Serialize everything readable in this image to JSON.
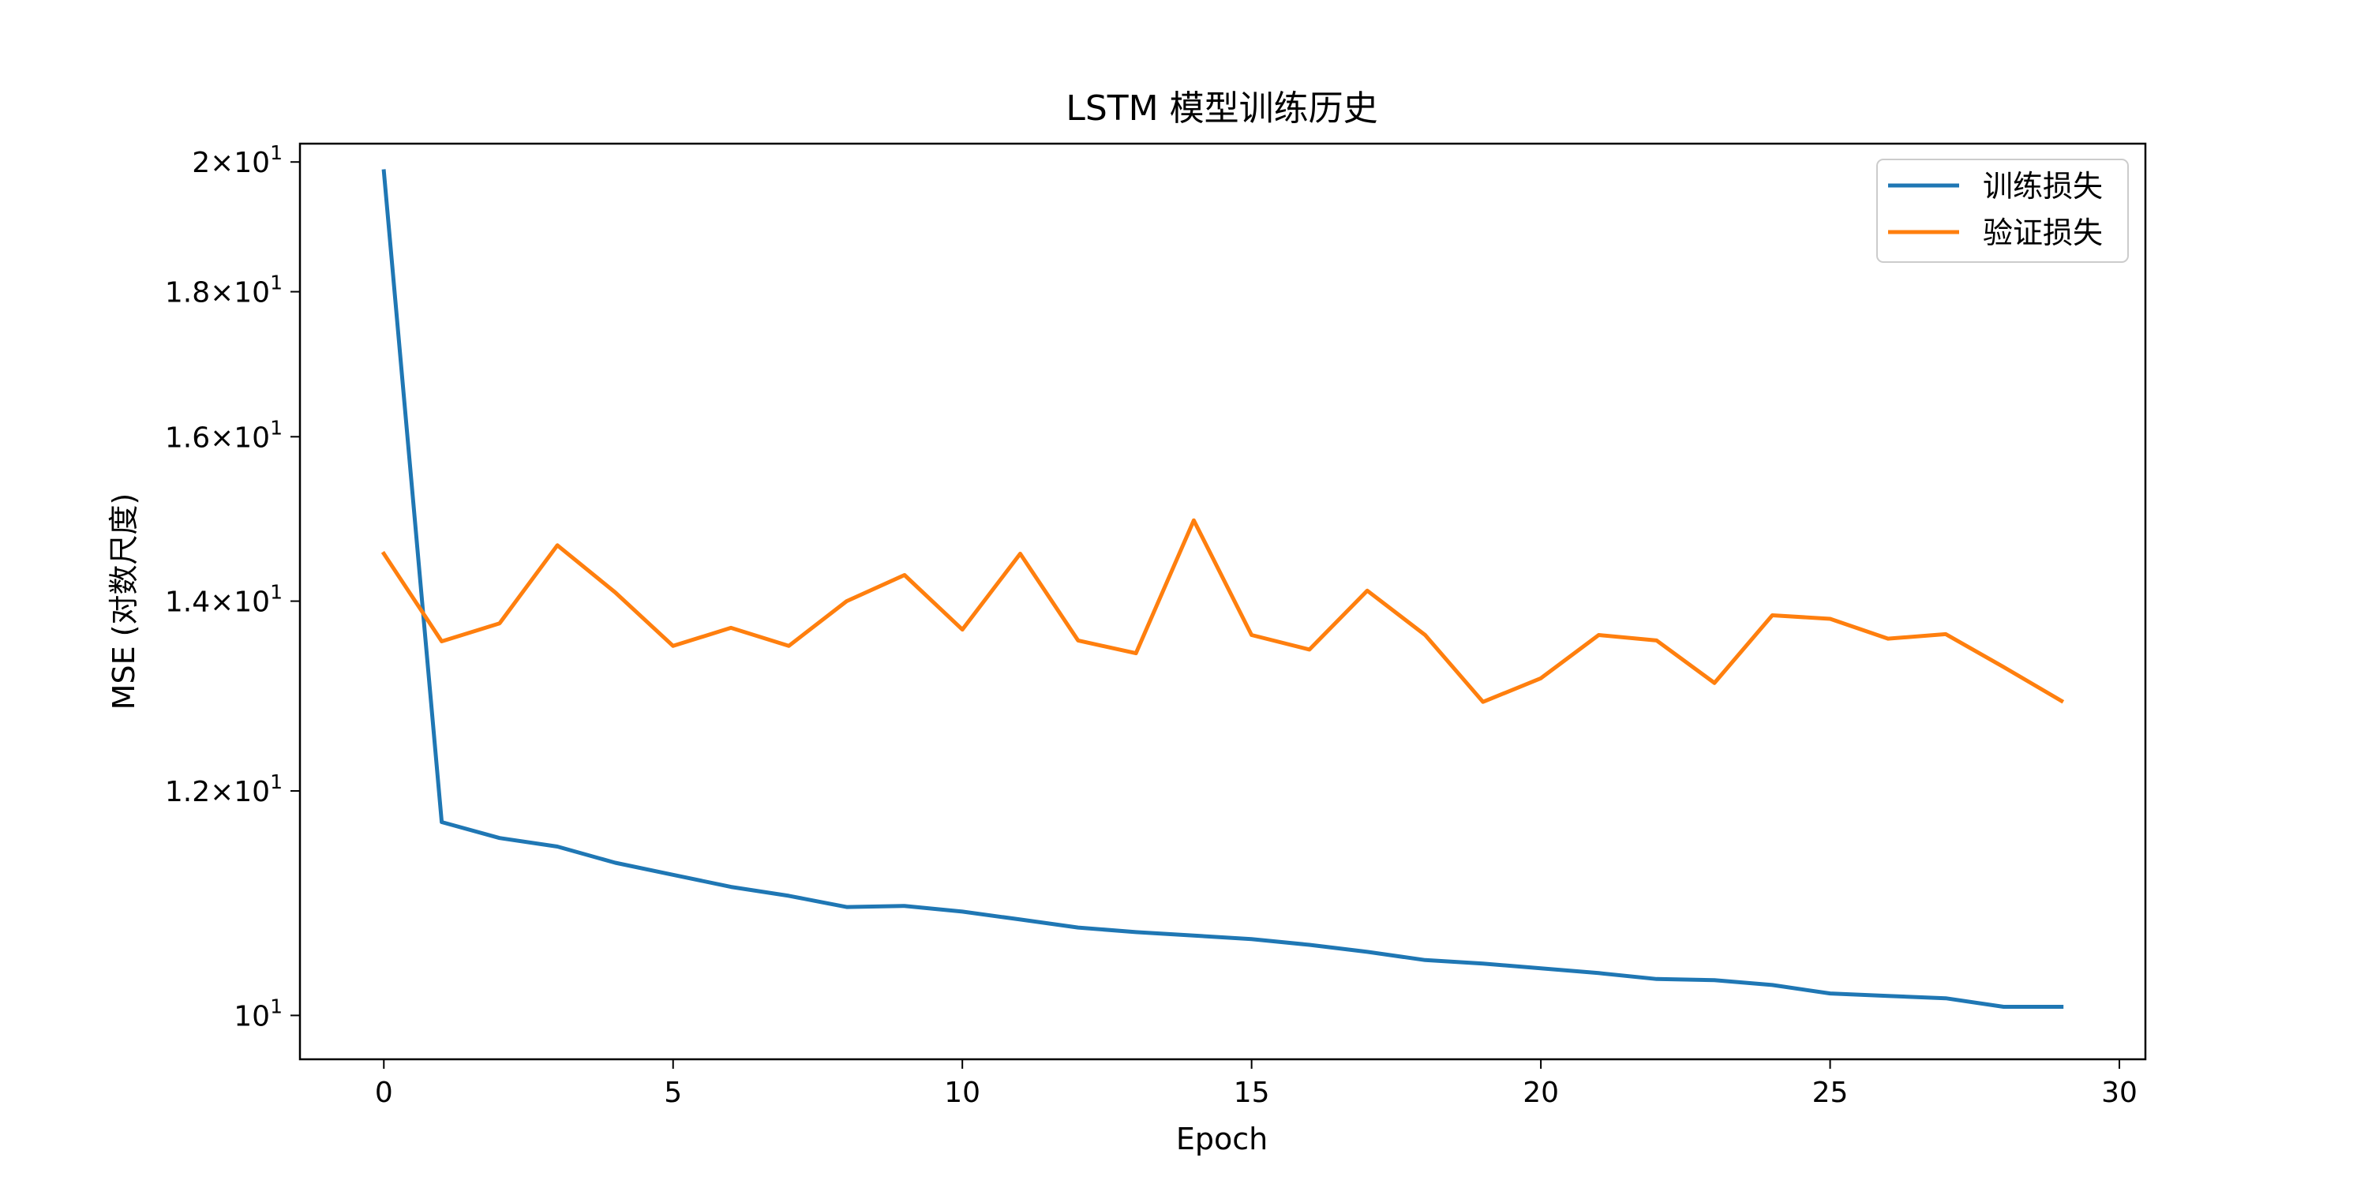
{
  "chart_data": {
    "type": "line",
    "title": "LSTM 模型训练历史",
    "xlabel": "Epoch",
    "ylabel": "MSE (对数尺度)",
    "yscale": "log",
    "xlim": [
      -1.45,
      30.45
    ],
    "ylim": [
      9.65,
      20.3
    ],
    "x_ticks": [
      0,
      5,
      10,
      15,
      20,
      25,
      30
    ],
    "y_ticks": [
      {
        "value": 10,
        "mantissa": "",
        "base": "10",
        "exp": "1"
      },
      {
        "value": 12,
        "mantissa": "1.2",
        "base": "10",
        "exp": "1"
      },
      {
        "value": 14,
        "mantissa": "1.4",
        "base": "10",
        "exp": "1"
      },
      {
        "value": 16,
        "mantissa": "1.6",
        "base": "10",
        "exp": "1"
      },
      {
        "value": 18,
        "mantissa": "1.8",
        "base": "10",
        "exp": "1"
      },
      {
        "value": 20,
        "mantissa": "2",
        "base": "10",
        "exp": "1"
      }
    ],
    "grid": false,
    "legend_position": "top-right",
    "x": [
      0,
      1,
      2,
      3,
      4,
      5,
      6,
      7,
      8,
      9,
      10,
      11,
      12,
      13,
      14,
      15,
      16,
      17,
      18,
      19,
      20,
      21,
      22,
      23,
      24,
      25,
      26,
      27,
      28,
      29
    ],
    "series": [
      {
        "name": "训练损失",
        "color": "#1f77b4",
        "values": [
          19.85,
          11.7,
          11.55,
          11.47,
          11.32,
          11.21,
          11.1,
          11.02,
          10.92,
          10.93,
          10.88,
          10.81,
          10.74,
          10.7,
          10.67,
          10.64,
          10.59,
          10.53,
          10.46,
          10.43,
          10.39,
          10.35,
          10.3,
          10.29,
          10.25,
          10.18,
          10.16,
          10.14,
          10.07,
          10.07
        ]
      },
      {
        "name": "验证损失",
        "color": "#ff7f0e",
        "values": [
          14.55,
          13.55,
          13.75,
          14.65,
          14.1,
          13.5,
          13.7,
          13.5,
          14.0,
          14.3,
          13.68,
          14.55,
          13.56,
          13.42,
          14.95,
          13.62,
          13.46,
          14.12,
          13.62,
          12.9,
          13.15,
          13.62,
          13.56,
          13.1,
          13.84,
          13.8,
          13.58,
          13.63,
          13.27,
          12.91
        ]
      }
    ]
  }
}
